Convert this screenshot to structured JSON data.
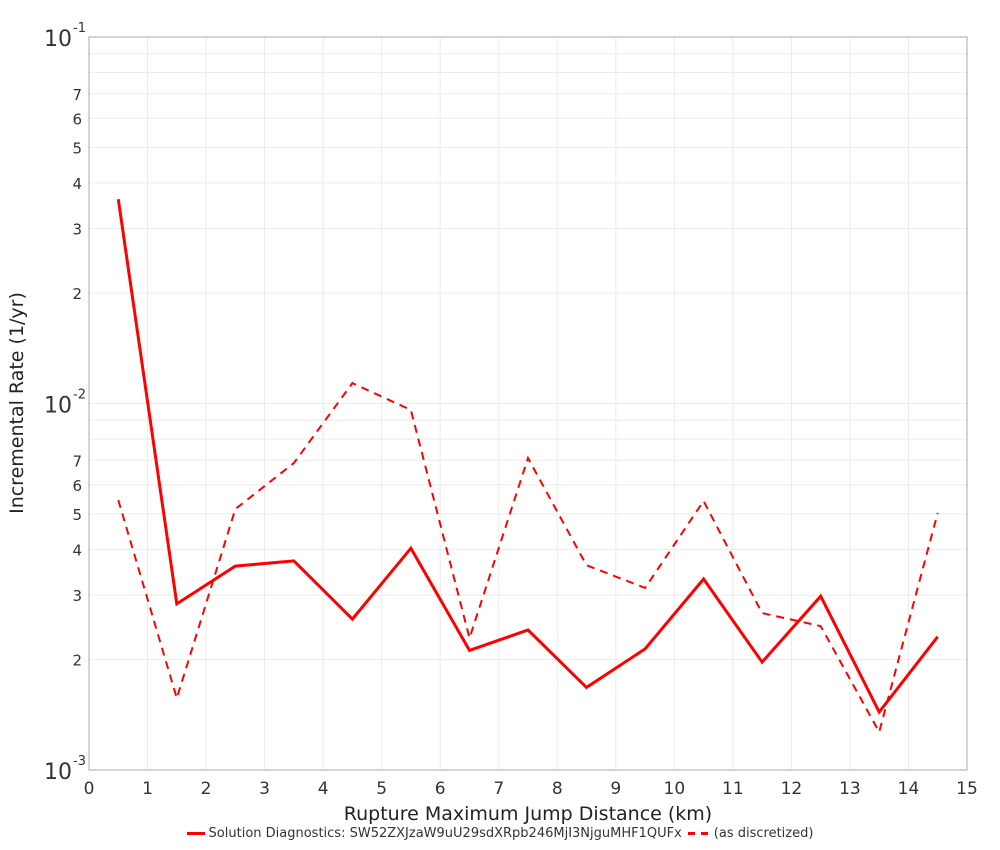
{
  "chart_data": {
    "type": "line",
    "title": "",
    "xlabel": "Rupture Maximum Jump Distance (km)",
    "ylabel": "Incremental Rate (1/yr)",
    "xlim": [
      0,
      15
    ],
    "ylim": [
      0.001,
      0.1
    ],
    "yscale": "log",
    "grid": true,
    "legend_position": "bottom",
    "x_ticks": [
      "0",
      "1",
      "2",
      "3",
      "4",
      "5",
      "6",
      "7",
      "8",
      "9",
      "10",
      "11",
      "12",
      "13",
      "14",
      "15"
    ],
    "y_major_ticks": [
      "10^-1",
      "10^-2",
      "10^-3"
    ],
    "y_minor_tick_labels": [
      "2",
      "3",
      "4",
      "5",
      "6",
      "7"
    ],
    "x": [
      0.5,
      1.5,
      2.5,
      3.5,
      4.5,
      5.5,
      6.5,
      7.5,
      8.5,
      9.5,
      10.5,
      11.5,
      12.5,
      13.5,
      14.5
    ],
    "series": [
      {
        "name": "Solution Diagnostics: SW52ZXJzaW9uU29sdXRpb246MjI3NjguMHF1QUFx",
        "style": "solid",
        "color": "#ff0000",
        "values": [
          0.0361,
          0.00284,
          0.0036,
          0.00372,
          0.00258,
          0.00403,
          0.00212,
          0.00241,
          0.00168,
          0.00214,
          0.00332,
          0.00197,
          0.00298,
          0.00144,
          0.00231
        ]
      },
      {
        "name": "(as discretized)",
        "style": "dashed",
        "color": "#ff0000",
        "values": [
          0.00545,
          0.00157,
          0.00515,
          0.00688,
          0.01137,
          0.0096,
          0.00229,
          0.0071,
          0.00362,
          0.00314,
          0.00542,
          0.00268,
          0.00247,
          0.00127,
          0.00503
        ]
      }
    ]
  },
  "axes": {
    "xlabel": "Rupture Maximum Jump Distance (km)",
    "ylabel": "Incremental Rate (1/yr)"
  },
  "legend": {
    "series1": "Solution Diagnostics: SW52ZXJzaW9uU29sdXRpb246MjI3NjguMHF1QUFx",
    "series2": "(as discretized)"
  }
}
